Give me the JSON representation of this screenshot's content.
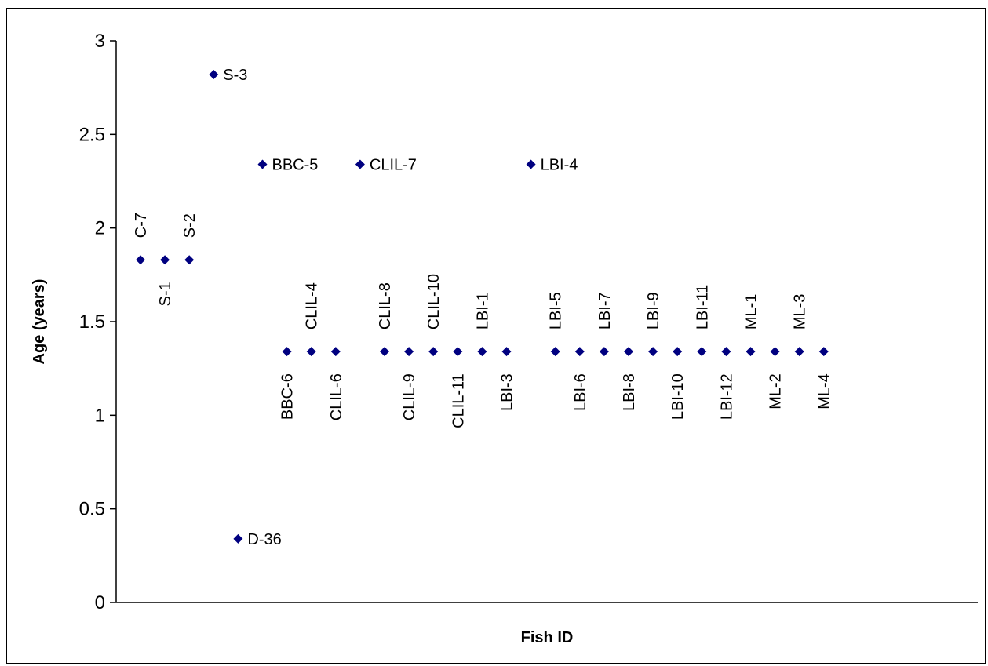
{
  "chart_data": {
    "type": "scatter",
    "title": "",
    "xlabel": "Fish ID",
    "ylabel": "Age (years)",
    "ylim": [
      0,
      3
    ],
    "yticks": [
      "0",
      "0.5",
      "1",
      "1.5",
      "2",
      "2.5",
      "3"
    ],
    "grid": false,
    "legend": "none",
    "marker_color": "#000080",
    "points": [
      {
        "label": "C-7",
        "x": 1,
        "y": 1.83
      },
      {
        "label": "S-1",
        "x": 2,
        "y": 1.83
      },
      {
        "label": "S-2",
        "x": 3,
        "y": 1.83
      },
      {
        "label": "S-3",
        "x": 4,
        "y": 2.82
      },
      {
        "label": "D-36",
        "x": 5,
        "y": 0.34
      },
      {
        "label": "BBC-5",
        "x": 6,
        "y": 2.34
      },
      {
        "label": "BBC-6",
        "x": 7,
        "y": 1.34
      },
      {
        "label": "CLIL-4",
        "x": 8,
        "y": 1.34
      },
      {
        "label": "CLIL-6",
        "x": 9,
        "y": 1.34
      },
      {
        "label": "CLIL-7",
        "x": 10,
        "y": 2.34
      },
      {
        "label": "CLIL-8",
        "x": 11,
        "y": 1.34
      },
      {
        "label": "CLIL-9",
        "x": 12,
        "y": 1.34
      },
      {
        "label": "CLIL-10",
        "x": 13,
        "y": 1.34
      },
      {
        "label": "CLIL-11",
        "x": 14,
        "y": 1.34
      },
      {
        "label": "LBI-1",
        "x": 15,
        "y": 1.34
      },
      {
        "label": "LBI-3",
        "x": 16,
        "y": 1.34
      },
      {
        "label": "LBI-4",
        "x": 17,
        "y": 2.34
      },
      {
        "label": "LBI-5",
        "x": 18,
        "y": 1.34
      },
      {
        "label": "LBI-6",
        "x": 19,
        "y": 1.34
      },
      {
        "label": "LBI-7",
        "x": 20,
        "y": 1.34
      },
      {
        "label": "LBI-8",
        "x": 21,
        "y": 1.34
      },
      {
        "label": "LBI-9",
        "x": 22,
        "y": 1.34
      },
      {
        "label": "LBI-10",
        "x": 23,
        "y": 1.34
      },
      {
        "label": "LBI-11",
        "x": 24,
        "y": 1.34
      },
      {
        "label": "LBI-12",
        "x": 25,
        "y": 1.34
      },
      {
        "label": "ML-1",
        "x": 26,
        "y": 1.34
      },
      {
        "label": "ML-2",
        "x": 27,
        "y": 1.34
      },
      {
        "label": "ML-3",
        "x": 28,
        "y": 1.34
      },
      {
        "label": "ML-4",
        "x": 29,
        "y": 1.34
      }
    ]
  }
}
